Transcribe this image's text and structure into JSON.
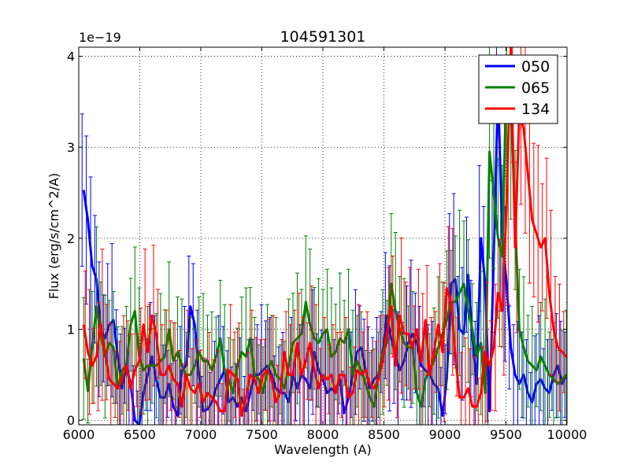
{
  "chart_data": {
    "type": "line",
    "title": "104591301",
    "xlabel": "Wavelength (A)",
    "ylabel": "Flux (erg/s/cm^2/A)",
    "y_scale_label": "1e−19",
    "xlim": [
      6000,
      10000
    ],
    "ylim": [
      -0.05,
      4.1
    ],
    "x_ticks": [
      6000,
      6500,
      7000,
      7500,
      8000,
      8500,
      9000,
      9500,
      10000
    ],
    "x_tick_labels": [
      "6000",
      "6500",
      "7000",
      "7500",
      "8000",
      "8500",
      "9000",
      "9500",
      "10000"
    ],
    "y_ticks": [
      0,
      1,
      2,
      3,
      4
    ],
    "y_tick_labels": [
      "0",
      "1",
      "2",
      "3",
      "4"
    ],
    "grid": true,
    "legend_position": "top-right",
    "x": [
      6040,
      6075,
      6110,
      6145,
      6180,
      6215,
      6250,
      6285,
      6320,
      6355,
      6390,
      6425,
      6460,
      6495,
      6530,
      6565,
      6600,
      6635,
      6670,
      6705,
      6740,
      6775,
      6810,
      6845,
      6880,
      6915,
      6950,
      6985,
      7020,
      7055,
      7090,
      7125,
      7160,
      7195,
      7230,
      7265,
      7300,
      7335,
      7370,
      7405,
      7440,
      7475,
      7510,
      7545,
      7580,
      7615,
      7650,
      7685,
      7720,
      7755,
      7790,
      7825,
      7860,
      7895,
      7930,
      7965,
      8000,
      8035,
      8070,
      8105,
      8140,
      8175,
      8210,
      8245,
      8280,
      8315,
      8350,
      8385,
      8420,
      8455,
      8490,
      8525,
      8560,
      8595,
      8630,
      8665,
      8700,
      8735,
      8770,
      8805,
      8840,
      8875,
      8910,
      8945,
      8980,
      9015,
      9050,
      9085,
      9120,
      9155,
      9190,
      9225,
      9260,
      9295,
      9330,
      9365,
      9400,
      9435,
      9470,
      9505,
      9540,
      9575,
      9610,
      9645,
      9680,
      9715,
      9750,
      9785,
      9820,
      9855,
      9890,
      9925,
      9960,
      9995
    ],
    "series": [
      {
        "name": "050",
        "color": "#0000ff",
        "values": [
          2.53,
          2.2,
          1.7,
          1.55,
          1.0,
          0.9,
          1.05,
          1.1,
          0.7,
          0.35,
          0.6,
          0.4,
          0.0,
          -0.05,
          0.3,
          0.5,
          0.7,
          0.45,
          0.25,
          0.25,
          0.4,
          0.15,
          0.05,
          0.55,
          0.6,
          1.25,
          1.05,
          0.5,
          0.1,
          0.12,
          0.2,
          0.35,
          0.45,
          0.55,
          0.2,
          0.25,
          0.15,
          0.25,
          0.1,
          0.3,
          0.5,
          0.5,
          0.55,
          0.6,
          0.5,
          0.35,
          0.3,
          0.3,
          0.2,
          0.5,
          0.35,
          0.5,
          0.45,
          0.35,
          0.75,
          0.55,
          0.45,
          0.3,
          0.35,
          0.3,
          0.45,
          0.08,
          0.25,
          0.5,
          0.75,
          0.8,
          0.55,
          0.35,
          0.45,
          0.5,
          0.75,
          1.15,
          0.9,
          0.7,
          0.55,
          0.65,
          0.85,
          0.95,
          0.85,
          0.6,
          0.55,
          0.5,
          0.4,
          0.35,
          0.05,
          0.45,
          1.5,
          1.55,
          1.0,
          0.95,
          1.6,
          0.9,
          0.4,
          2.0,
          1.5,
          0.1,
          1.8,
          3.65,
          2.0,
          1.5,
          0.8,
          0.5,
          0.4,
          0.5,
          0.3,
          0.2,
          0.4,
          0.45,
          0.35,
          0.3,
          0.5,
          0.6,
          0.4,
          0.5
        ]
      },
      {
        "name": "065",
        "color": "#008000",
        "values": [
          0.68,
          0.32,
          0.8,
          1.25,
          0.95,
          0.7,
          0.85,
          0.8,
          0.35,
          0.55,
          0.6,
          1.05,
          1.2,
          0.7,
          0.55,
          0.6,
          0.6,
          0.6,
          0.65,
          0.7,
          1.0,
          0.65,
          0.75,
          0.6,
          0.5,
          0.5,
          0.6,
          0.75,
          0.65,
          0.65,
          0.55,
          0.7,
          0.9,
          0.55,
          0.45,
          0.3,
          0.6,
          0.75,
          0.7,
          0.9,
          0.5,
          0.45,
          0.3,
          0.55,
          0.65,
          0.5,
          0.45,
          0.35,
          0.6,
          0.85,
          0.9,
          0.95,
          1.3,
          1.05,
          0.9,
          0.85,
          0.95,
          1.0,
          0.7,
          0.75,
          0.9,
          0.85,
          1.0,
          0.5,
          0.65,
          0.55,
          0.4,
          0.25,
          0.15,
          0.5,
          0.75,
          0.85,
          1.5,
          1.2,
          1.0,
          0.85,
          0.8,
          0.8,
          0.3,
          0.15,
          0.45,
          0.55,
          0.65,
          0.8,
          0.95,
          1.1,
          1.3,
          1.3,
          1.4,
          1.5,
          1.2,
          1.0,
          0.7,
          0.85,
          0.3,
          2.95,
          2.5,
          2.0,
          1.8,
          3.9,
          3.5,
          2.2,
          1.0,
          0.8,
          0.65,
          0.6,
          0.55,
          0.7,
          0.6,
          0.5,
          0.45,
          0.4,
          0.45,
          0.5
        ]
      },
      {
        "name": "134",
        "color": "#ff0000",
        "values": [
          1.05,
          0.75,
          0.6,
          0.7,
          1.05,
          0.75,
          0.45,
          0.4,
          0.35,
          0.45,
          0.6,
          0.35,
          0.55,
          0.65,
          1.05,
          0.75,
          1.15,
          0.95,
          0.5,
          0.5,
          0.6,
          0.45,
          0.4,
          0.15,
          0.5,
          0.35,
          0.3,
          0.4,
          0.2,
          0.3,
          0.25,
          0.2,
          0.1,
          0.1,
          0.55,
          0.5,
          0.45,
          0.05,
          0.25,
          0.5,
          0.45,
          0.3,
          0.5,
          0.55,
          0.45,
          0.2,
          0.3,
          0.75,
          0.5,
          0.5,
          0.85,
          0.5,
          0.65,
          0.85,
          0.55,
          0.35,
          0.5,
          0.45,
          0.5,
          0.3,
          0.5,
          0.5,
          0.25,
          0.3,
          0.55,
          0.5,
          0.55,
          0.4,
          0.35,
          0.45,
          0.65,
          0.95,
          1.25,
          0.6,
          1.15,
          0.95,
          0.95,
          0.8,
          1.0,
          0.65,
          1.1,
          0.5,
          0.75,
          1.05,
          0.75,
          1.45,
          1.3,
          0.7,
          0.25,
          0.25,
          0.35,
          0.15,
          0.15,
          0.3,
          0.75,
          0.6,
          0.8,
          1.4,
          1.2,
          2.4,
          4.1,
          1.9,
          3.4,
          3.2,
          2.7,
          2.2,
          2.05,
          1.9,
          2.0,
          1.4,
          1.0,
          0.8,
          0.75,
          0.7
        ]
      }
    ]
  }
}
